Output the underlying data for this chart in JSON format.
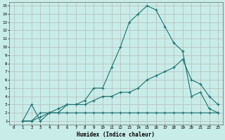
{
  "xlabel": "Humidex (Indice chaleur)",
  "bg_color": "#c8ece8",
  "grid_color": "#b0b0b0",
  "line_color": "#1e7070",
  "xlim": [
    -0.5,
    23.5
  ],
  "ylim": [
    0.6,
    15.4
  ],
  "xtick_vals": [
    0,
    1,
    2,
    3,
    4,
    5,
    6,
    7,
    8,
    9,
    10,
    11,
    12,
    13,
    14,
    15,
    16,
    17,
    18,
    19,
    20,
    21,
    22,
    23
  ],
  "ytick_vals": [
    1,
    2,
    3,
    4,
    5,
    6,
    7,
    8,
    9,
    10,
    11,
    12,
    13,
    14,
    15
  ],
  "line1_x": [
    1,
    2,
    3,
    4,
    5,
    6,
    7,
    8,
    9,
    10,
    11,
    12,
    13,
    14,
    15,
    16,
    17,
    18,
    19,
    20,
    21,
    22,
    23
  ],
  "line1_y": [
    1,
    3,
    1,
    2,
    2,
    3,
    3,
    3.5,
    5,
    5,
    7.5,
    10,
    13,
    14,
    15,
    14.5,
    12.5,
    10.5,
    9.5,
    4,
    4.5,
    2.5,
    2
  ],
  "line2_x": [
    1,
    2,
    3,
    4,
    5,
    6,
    7,
    8,
    9,
    10,
    11,
    12,
    13,
    14,
    15,
    16,
    17,
    18,
    19,
    20,
    21,
    22,
    23
  ],
  "line2_y": [
    1,
    1,
    2,
    2,
    2.5,
    3,
    3,
    3,
    3.5,
    4,
    4,
    4.5,
    4.5,
    5,
    6,
    6.5,
    7,
    7.5,
    8.5,
    6,
    5.5,
    4,
    3
  ],
  "line3_x": [
    1,
    2,
    3,
    4,
    5,
    6,
    7,
    8,
    9,
    10,
    11,
    12,
    13,
    14,
    15,
    16,
    17,
    18,
    19,
    20,
    21,
    22,
    23
  ],
  "line3_y": [
    1,
    1,
    1.5,
    2,
    2,
    2,
    2,
    2,
    2,
    2,
    2,
    2,
    2,
    2,
    2,
    2,
    2,
    2,
    2,
    2,
    2,
    2,
    2
  ]
}
